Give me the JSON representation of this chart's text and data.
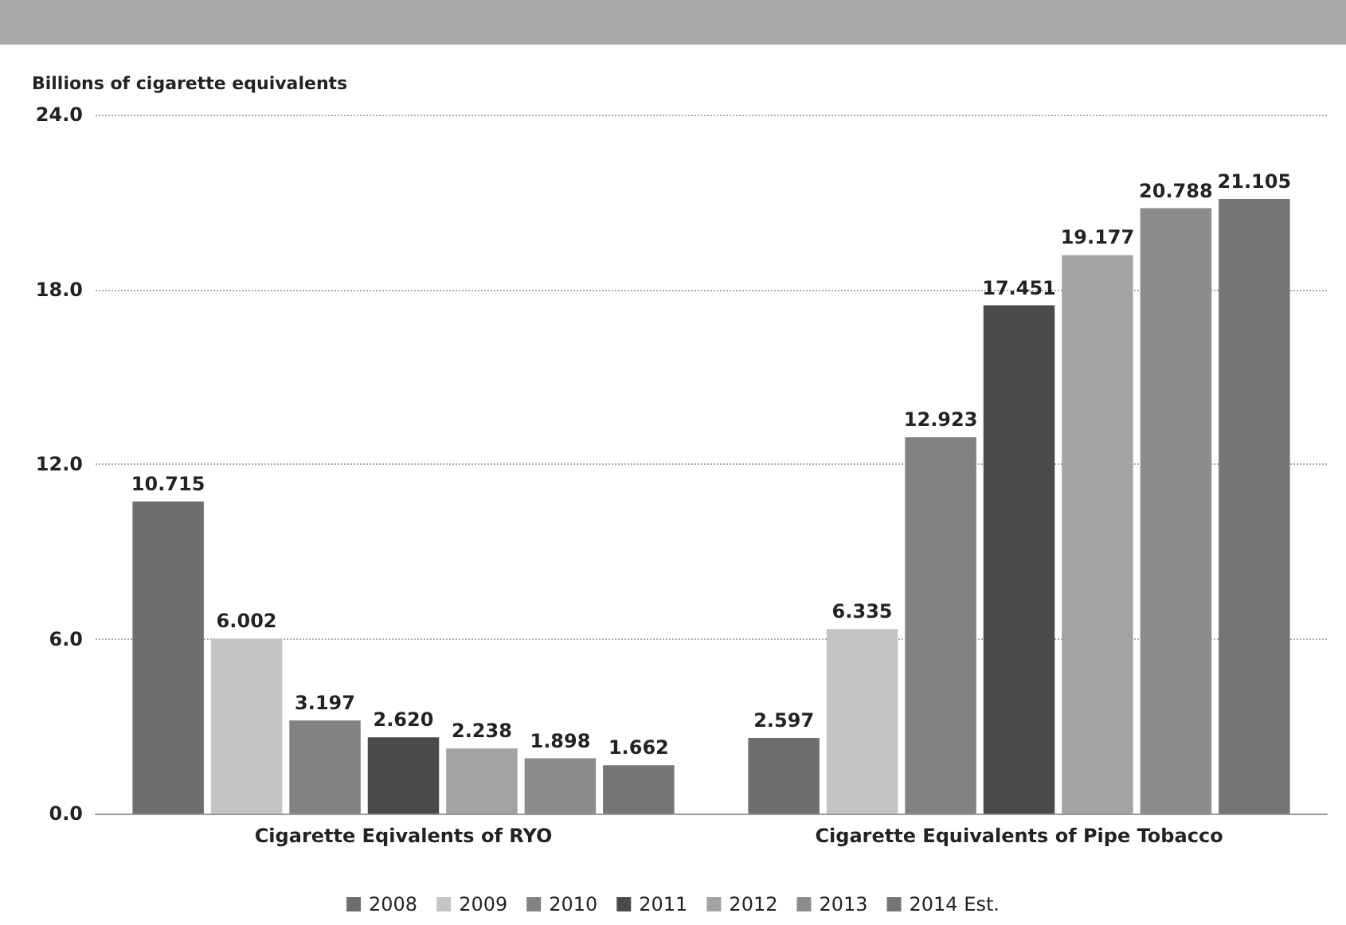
{
  "chart_data": {
    "type": "bar",
    "ylabel": "Billions of cigarette equivalents",
    "categories": [
      "Cigarette Eqivalents of RYO",
      "Cigarette Equivalents of Pipe Tobacco"
    ],
    "series": [
      {
        "name": "2008",
        "color": "#6e6e6e",
        "values": [
          10.715,
          2.597
        ],
        "value_labels": [
          "10.715",
          "2.597"
        ]
      },
      {
        "name": "2009",
        "color": "#c4c4c4",
        "values": [
          6.002,
          6.335
        ],
        "value_labels": [
          "6.002",
          "6.335"
        ]
      },
      {
        "name": "2010",
        "color": "#828282",
        "values": [
          3.197,
          12.923
        ],
        "value_labels": [
          "3.197",
          "12.923"
        ]
      },
      {
        "name": "2011",
        "color": "#4a4a4a",
        "values": [
          2.62,
          17.451
        ],
        "value_labels": [
          "2.620",
          "17.451"
        ]
      },
      {
        "name": "2012",
        "color": "#a3a3a3",
        "values": [
          2.238,
          19.177
        ],
        "value_labels": [
          "2.238",
          "19.177"
        ]
      },
      {
        "name": "2013",
        "color": "#8c8c8c",
        "values": [
          1.898,
          20.788
        ],
        "value_labels": [
          "1.898",
          "20.788"
        ]
      },
      {
        "name": "2014 Est.",
        "color": "#757575",
        "values": [
          1.662,
          21.105
        ],
        "value_labels": [
          "1.662",
          "21.105"
        ]
      }
    ],
    "ylim": [
      0,
      24
    ],
    "yticks": [
      {
        "value": 0,
        "label": "0.0"
      },
      {
        "value": 6,
        "label": "6.0"
      },
      {
        "value": 12,
        "label": "12.0"
      },
      {
        "value": 18,
        "label": "18.0"
      },
      {
        "value": 24,
        "label": "24.0"
      }
    ],
    "grid": "y",
    "legend": "bottom"
  }
}
